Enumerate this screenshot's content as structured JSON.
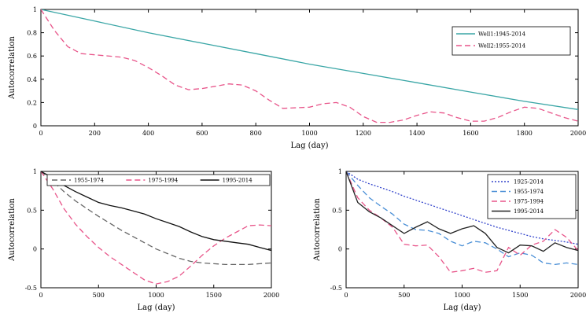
{
  "chart_data": [
    {
      "type": "line",
      "title": "",
      "xlabel": "Lag (day)",
      "ylabel": "Autocorrelation",
      "xlim": [
        0,
        2000
      ],
      "ylim": [
        0,
        1
      ],
      "xticks": [
        0,
        200,
        400,
        600,
        800,
        1000,
        1200,
        1400,
        1600,
        1800,
        2000
      ],
      "yticks": [
        0,
        0.2,
        0.4,
        0.6,
        0.8,
        1
      ],
      "ytick_labels": [
        "0",
        "0.2",
        "0.4",
        "0.6",
        "0.8",
        "1"
      ],
      "legend_position": "top-right",
      "series": [
        {
          "name": "Well1:1945-2014",
          "color": "#3aa6a6",
          "dash": "solid",
          "x": [
            0,
            200,
            400,
            600,
            800,
            1000,
            1200,
            1400,
            1600,
            1800,
            2000
          ],
          "y": [
            1.0,
            0.9,
            0.8,
            0.71,
            0.62,
            0.53,
            0.45,
            0.37,
            0.29,
            0.21,
            0.14
          ]
        },
        {
          "name": "Well2:1955-2014",
          "color": "#e8558a",
          "dash": "dashed",
          "x": [
            0,
            50,
            100,
            150,
            200,
            300,
            350,
            400,
            450,
            500,
            550,
            600,
            650,
            700,
            750,
            800,
            850,
            900,
            1000,
            1050,
            1100,
            1150,
            1200,
            1250,
            1300,
            1350,
            1400,
            1450,
            1500,
            1550,
            1600,
            1650,
            1700,
            1750,
            1800,
            1850,
            1900,
            1950,
            2000
          ],
          "y": [
            1.0,
            0.82,
            0.68,
            0.62,
            0.61,
            0.59,
            0.56,
            0.5,
            0.43,
            0.35,
            0.31,
            0.32,
            0.34,
            0.36,
            0.35,
            0.3,
            0.22,
            0.15,
            0.16,
            0.19,
            0.2,
            0.16,
            0.08,
            0.03,
            0.03,
            0.05,
            0.09,
            0.12,
            0.11,
            0.07,
            0.04,
            0.04,
            0.07,
            0.12,
            0.16,
            0.15,
            0.11,
            0.07,
            0.04
          ]
        }
      ]
    },
    {
      "type": "line",
      "title": "",
      "xlabel": "Lag (day)",
      "ylabel": "Autocorrelation",
      "xlim": [
        0,
        2000
      ],
      "ylim": [
        -0.5,
        1
      ],
      "xticks": [
        0,
        500,
        1000,
        1500,
        2000
      ],
      "yticks": [
        -0.5,
        0,
        0.5,
        1
      ],
      "ytick_labels": [
        "-0.5",
        "0",
        "0.5",
        "1"
      ],
      "legend_position": "top",
      "series": [
        {
          "name": "1955-1974",
          "color": "#666666",
          "dash": "dashed",
          "x": [
            0,
            100,
            200,
            300,
            400,
            500,
            600,
            700,
            800,
            900,
            1000,
            1100,
            1200,
            1300,
            1400,
            1500,
            1600,
            1700,
            1800,
            1900,
            2000
          ],
          "y": [
            1.0,
            0.88,
            0.74,
            0.62,
            0.52,
            0.42,
            0.33,
            0.24,
            0.16,
            0.08,
            0.0,
            -0.06,
            -0.12,
            -0.16,
            -0.18,
            -0.19,
            -0.2,
            -0.2,
            -0.2,
            -0.19,
            -0.18
          ]
        },
        {
          "name": "1975-1994",
          "color": "#e8558a",
          "dash": "dashed",
          "x": [
            0,
            100,
            200,
            300,
            400,
            500,
            600,
            700,
            800,
            900,
            1000,
            1100,
            1200,
            1300,
            1400,
            1500,
            1600,
            1700,
            1800,
            1900,
            2000
          ],
          "y": [
            1.0,
            0.78,
            0.52,
            0.32,
            0.16,
            0.02,
            -0.1,
            -0.2,
            -0.3,
            -0.4,
            -0.45,
            -0.42,
            -0.35,
            -0.22,
            -0.08,
            0.04,
            0.14,
            0.22,
            0.3,
            0.31,
            0.3
          ]
        },
        {
          "name": "1995-2014",
          "color": "#111111",
          "dash": "solid",
          "x": [
            0,
            100,
            200,
            300,
            400,
            500,
            600,
            700,
            800,
            900,
            1000,
            1100,
            1200,
            1300,
            1400,
            1500,
            1600,
            1700,
            1800,
            1900,
            2000
          ],
          "y": [
            1.0,
            0.92,
            0.82,
            0.74,
            0.67,
            0.6,
            0.56,
            0.53,
            0.49,
            0.45,
            0.39,
            0.34,
            0.29,
            0.22,
            0.16,
            0.12,
            0.1,
            0.08,
            0.06,
            0.02,
            -0.02
          ]
        }
      ]
    },
    {
      "type": "line",
      "title": "",
      "xlabel": "Lag (day)",
      "ylabel": "Autocorrelation",
      "xlim": [
        0,
        2000
      ],
      "ylim": [
        -0.5,
        1
      ],
      "xticks": [
        0,
        500,
        1000,
        1500,
        2000
      ],
      "yticks": [
        -0.5,
        0,
        0.5,
        1
      ],
      "ytick_labels": [
        "-0.5",
        "0",
        "0.5",
        "1"
      ],
      "legend_position": "top-right",
      "series": [
        {
          "name": "1925-2014",
          "color": "#3344cc",
          "dash": "dotted",
          "x": [
            0,
            100,
            200,
            300,
            400,
            500,
            600,
            700,
            800,
            900,
            1000,
            1100,
            1200,
            1300,
            1400,
            1500,
            1600,
            1700,
            1800,
            1900,
            2000
          ],
          "y": [
            1.0,
            0.9,
            0.84,
            0.79,
            0.74,
            0.68,
            0.63,
            0.58,
            0.53,
            0.48,
            0.43,
            0.38,
            0.33,
            0.28,
            0.24,
            0.2,
            0.16,
            0.13,
            0.11,
            0.09,
            0.06
          ]
        },
        {
          "name": "1955-1974",
          "color": "#4a8fd6",
          "dash": "dashed",
          "x": [
            0,
            100,
            200,
            300,
            400,
            500,
            600,
            700,
            800,
            900,
            1000,
            1100,
            1200,
            1300,
            1400,
            1500,
            1600,
            1700,
            1800,
            1900,
            2000
          ],
          "y": [
            1.0,
            0.82,
            0.66,
            0.55,
            0.45,
            0.32,
            0.25,
            0.24,
            0.2,
            0.1,
            0.04,
            0.1,
            0.08,
            0.0,
            -0.1,
            -0.05,
            -0.08,
            -0.18,
            -0.2,
            -0.18,
            -0.2
          ]
        },
        {
          "name": "1975-1994",
          "color": "#e8558a",
          "dash": "dashed",
          "x": [
            0,
            100,
            200,
            300,
            400,
            500,
            600,
            700,
            800,
            900,
            1000,
            1100,
            1200,
            1300,
            1400,
            1500,
            1600,
            1700,
            1800,
            1900,
            2000
          ],
          "y": [
            1.0,
            0.66,
            0.5,
            0.4,
            0.28,
            0.06,
            0.04,
            0.05,
            -0.1,
            -0.3,
            -0.28,
            -0.25,
            -0.3,
            -0.28,
            0.02,
            -0.08,
            0.05,
            0.1,
            0.25,
            0.15,
            -0.02
          ]
        },
        {
          "name": "1995-2014",
          "color": "#222222",
          "dash": "solid",
          "x": [
            0,
            100,
            200,
            300,
            400,
            500,
            600,
            700,
            800,
            900,
            1000,
            1100,
            1200,
            1300,
            1400,
            1500,
            1600,
            1700,
            1800,
            1900,
            2000
          ],
          "y": [
            1.0,
            0.6,
            0.48,
            0.4,
            0.3,
            0.2,
            0.28,
            0.35,
            0.26,
            0.2,
            0.26,
            0.3,
            0.2,
            0.02,
            -0.05,
            0.05,
            0.04,
            -0.03,
            0.08,
            0.02,
            -0.02
          ]
        }
      ]
    }
  ]
}
